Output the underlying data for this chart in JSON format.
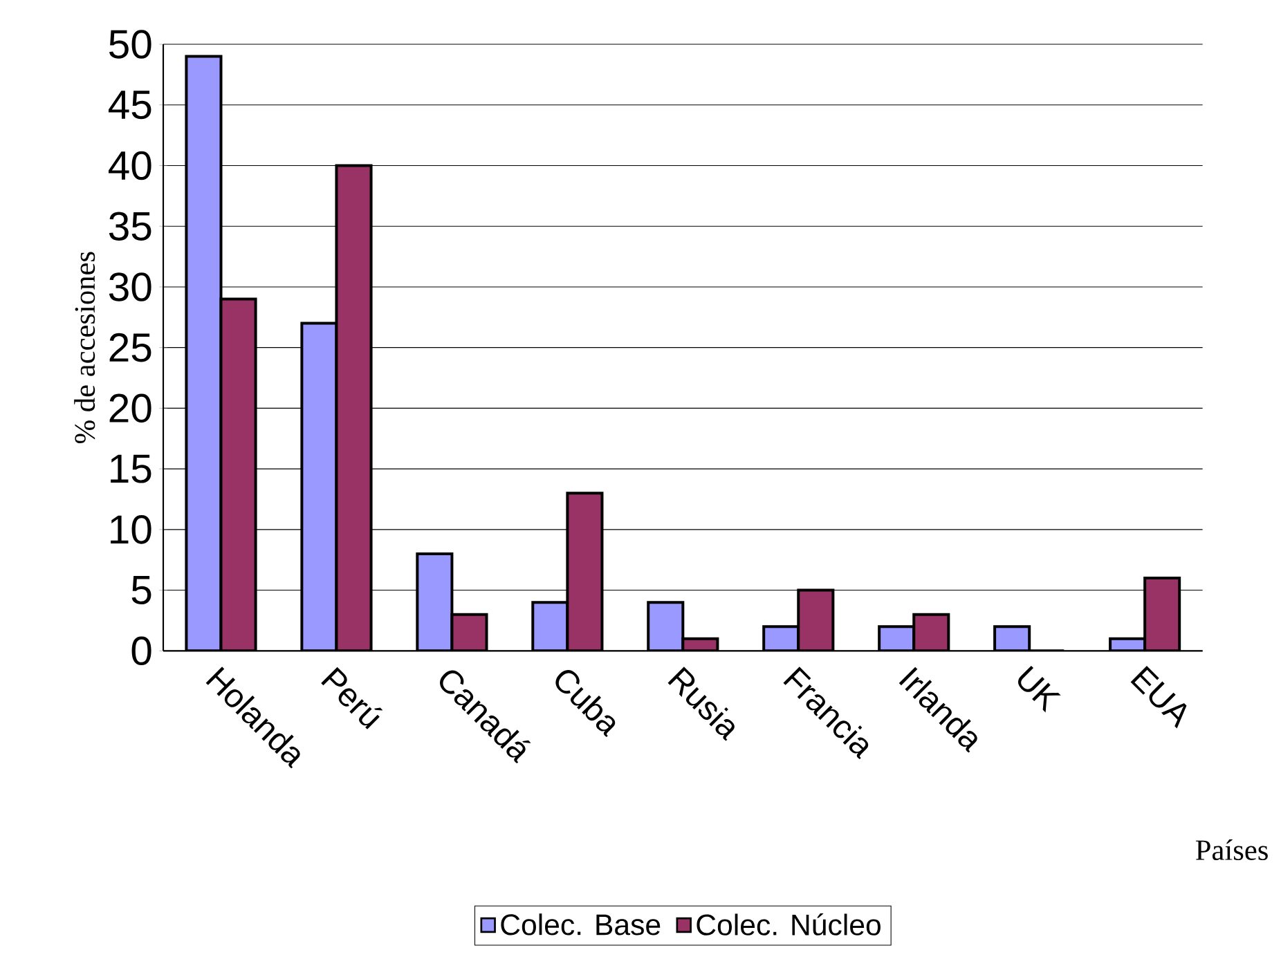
{
  "chart_data": {
    "type": "bar",
    "xlabel": "Países",
    "ylabel": "% de accesiones",
    "categories": [
      "Holanda",
      "Perú",
      "Canadá",
      "Cuba",
      "Rusia",
      "Francia",
      "Irlanda",
      "UK",
      "EUA"
    ],
    "series": [
      {
        "name": "Colec. Base",
        "color": "#9999ff",
        "values": [
          49,
          27,
          8,
          4,
          4,
          2,
          2,
          2,
          1
        ]
      },
      {
        "name": "Colec. Núcleo",
        "color": "#993366",
        "values": [
          29,
          40,
          3,
          13,
          1,
          5,
          3,
          0,
          6
        ]
      }
    ],
    "ylim": [
      0,
      50
    ],
    "yticks": [
      0,
      5,
      10,
      15,
      20,
      25,
      30,
      35,
      40,
      45,
      50
    ],
    "grid": "y",
    "legend": "bottom"
  }
}
